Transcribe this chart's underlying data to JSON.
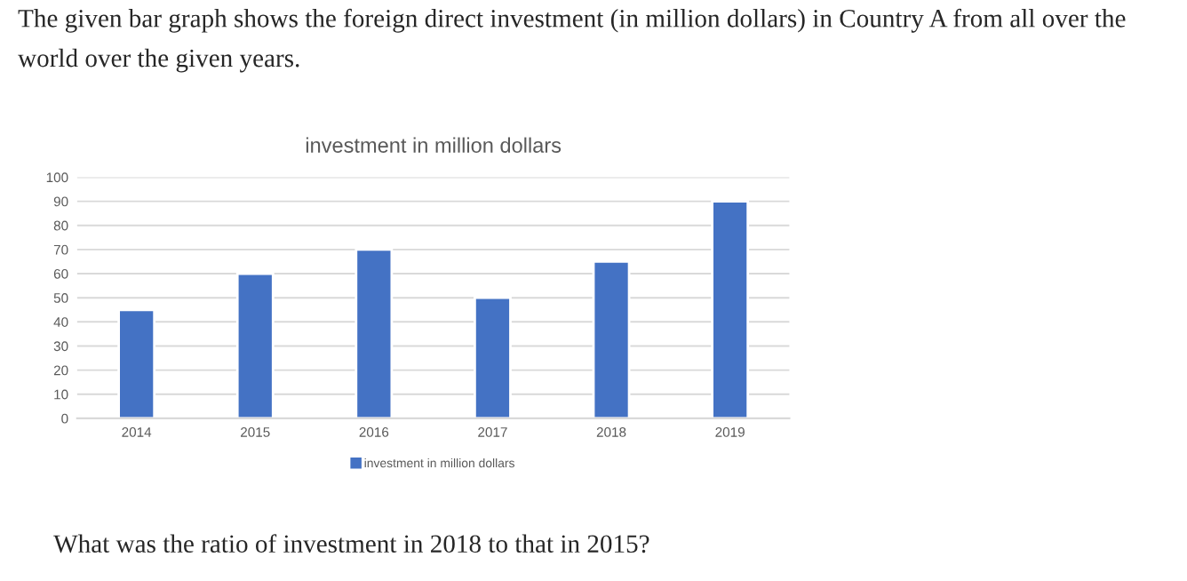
{
  "chart_data": {
    "type": "bar",
    "title": "The given bar graph shows the foreign direct investment (in million dollars) in Country A from all over the world over the given years.",
    "subtitle": "investment in million dollars",
    "categories": [
      "2014",
      "2015",
      "2016",
      "2017",
      "2018",
      "2019"
    ],
    "series": [
      {
        "name": "investment in million dollars",
        "color": "#4472c4",
        "values": [
          45,
          60,
          70,
          50,
          65,
          90
        ]
      }
    ],
    "ylim": [
      0,
      100
    ],
    "yticks": [
      0,
      10,
      20,
      30,
      40,
      50,
      60,
      70,
      80,
      90,
      100
    ],
    "grid": "y",
    "legend": "bottom",
    "annotations": [
      "What was the ratio of investment in 2018 to that in 2015?"
    ]
  }
}
